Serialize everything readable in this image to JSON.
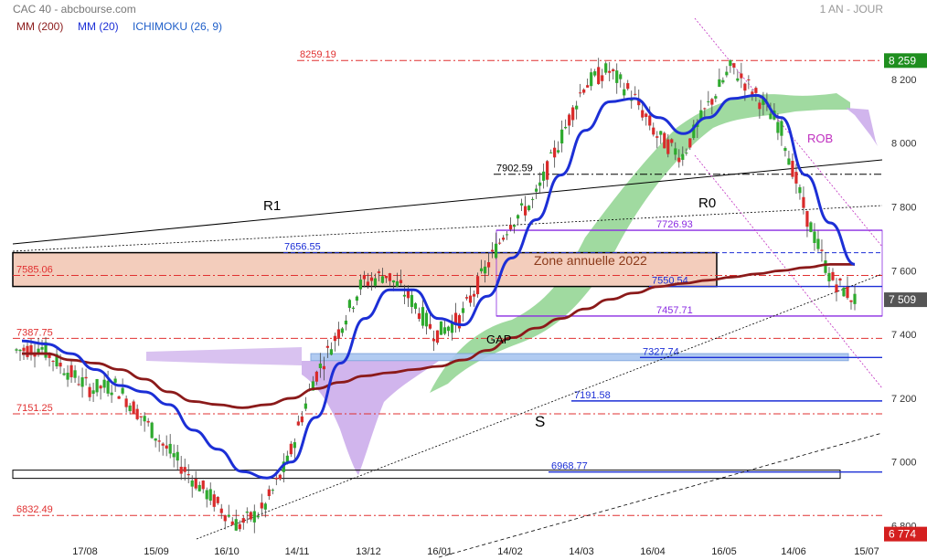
{
  "header": {
    "source": "CAC 40 - abcbourse.com",
    "period": "1 AN - JOUR"
  },
  "legend": [
    {
      "label": "MM (200)",
      "color": "#8b1a1a"
    },
    {
      "label": "MM (20)",
      "color": "#1c2fd6"
    },
    {
      "label": "ICHIMOKU (26, 9)",
      "color": "#1f5fc9"
    }
  ],
  "chart_data": {
    "type": "line",
    "title": "CAC 40 - abcbourse.com",
    "subtitle": "1 AN - JOUR",
    "ylim": [
      6750,
      8300
    ],
    "grid": false,
    "yaxis_side": "right",
    "yticks": [
      6800,
      7000,
      7200,
      7400,
      7600,
      7800,
      8000,
      8200
    ],
    "ytick_labels": [
      "6 800",
      "7 000",
      "7 200",
      "7 400",
      "7 600",
      "7 800",
      "8 000",
      "8 200"
    ],
    "xtick_labels": [
      "17/08",
      "15/09",
      "16/10",
      "14/11",
      "13/12",
      "16/01",
      "14/02",
      "14/03",
      "16/04",
      "16/05",
      "14/06",
      "15/07"
    ],
    "last_price": {
      "label": "7 509",
      "value": 7509
    },
    "high_badge": {
      "label": "8 259",
      "value": 8259
    },
    "low_badge": {
      "label": "6 774",
      "value": 6774
    },
    "horizontal_levels": [
      {
        "label": "8259.19",
        "value": 8259.19,
        "color": "#e03030",
        "style": "dashdot"
      },
      {
        "label": "7902.59",
        "value": 7902.59,
        "color": "#000000",
        "style": "dashdot"
      },
      {
        "label": "7726.93",
        "value": 7726.93,
        "color": "#8a2be2",
        "style": "solid"
      },
      {
        "label": "7656.55",
        "value": 7656.55,
        "color": "#1c2fd6",
        "style": "dashed"
      },
      {
        "label": "7585.06",
        "value": 7585.06,
        "color": "#e03030",
        "style": "dashdot"
      },
      {
        "label": "7550.54",
        "value": 7550.54,
        "color": "#1c2fd6",
        "style": "solid"
      },
      {
        "label": "7457.71",
        "value": 7457.71,
        "color": "#8a2be2",
        "style": "solid"
      },
      {
        "label": "7387.75",
        "value": 7387.75,
        "color": "#e03030",
        "style": "dashdot"
      },
      {
        "label": "7327.74",
        "value": 7327.74,
        "color": "#1c2fd6",
        "style": "solid"
      },
      {
        "label": "7191.58",
        "value": 7191.58,
        "color": "#1c2fd6",
        "style": "solid"
      },
      {
        "label": "7151.25",
        "value": 7151.25,
        "color": "#e03030",
        "style": "dashdot"
      },
      {
        "label": "6968.77",
        "value": 6968.77,
        "color": "#1c2fd6",
        "style": "solid"
      },
      {
        "label": "6832.49",
        "value": 6832.49,
        "color": "#e03030",
        "style": "dashdot"
      }
    ],
    "annotations": [
      {
        "text": "R1",
        "color": "#000000"
      },
      {
        "text": "R0",
        "color": "#000000"
      },
      {
        "text": "S",
        "color": "#000000"
      },
      {
        "text": "GAP",
        "color": "#000000"
      },
      {
        "text": "ROB",
        "color": "#c030c0"
      },
      {
        "text": "Zone annuelle 2022",
        "color": "#8b3a1a"
      }
    ],
    "series": [
      {
        "name": "MM (20)",
        "color": "#1c2fd6",
        "values": [
          7380,
          7370,
          7340,
          7290,
          7240,
          7220,
          7180,
          7100,
          7040,
          6970,
          6950,
          7000,
          7140,
          7310,
          7450,
          7540,
          7540,
          7450,
          7430,
          7520,
          7640,
          7760,
          7900,
          8040,
          8130,
          8140,
          8080,
          8030,
          8080,
          8140,
          8150,
          8080,
          7900,
          7750,
          7620
        ]
      },
      {
        "name": "MM (200)",
        "color": "#8b1a1a",
        "values": [
          7340,
          7340,
          7320,
          7310,
          7290,
          7260,
          7220,
          7190,
          7180,
          7170,
          7180,
          7200,
          7230,
          7250,
          7270,
          7280,
          7290,
          7300,
          7320,
          7350,
          7390,
          7420,
          7450,
          7480,
          7510,
          7530,
          7550,
          7560,
          7570,
          7580,
          7590,
          7600,
          7610,
          7620,
          7620
        ]
      },
      {
        "name": "Prix",
        "color": "#333333",
        "values": [
          7350,
          7360,
          7290,
          7230,
          7240,
          7150,
          7050,
          6960,
          6880,
          6800,
          6850,
          7000,
          7250,
          7400,
          7560,
          7590,
          7510,
          7400,
          7450,
          7600,
          7750,
          7820,
          8000,
          8180,
          8230,
          8150,
          8020,
          7960,
          8110,
          8240,
          8150,
          8050,
          7780,
          7580,
          7509
        ]
      }
    ]
  }
}
